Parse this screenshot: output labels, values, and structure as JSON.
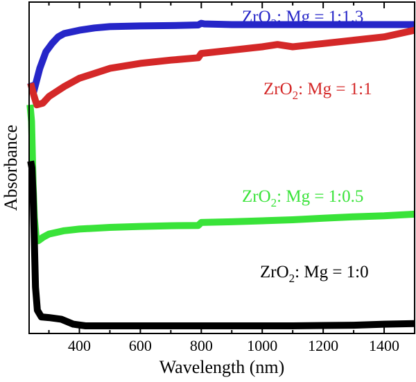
{
  "chart_data": {
    "type": "line",
    "title": "",
    "xlabel": "Wavelength (nm)",
    "ylabel": "Absorbance",
    "xlim": [
      235,
      1500
    ],
    "ylim": [
      0,
      1
    ],
    "x_ticks": [
      400,
      600,
      800,
      1000,
      1200,
      1400
    ],
    "y_ticks_shown": false,
    "grid": false,
    "legend": "inline labels",
    "series": [
      {
        "name": "ZrO2: Mg = 1:1.3",
        "name_parts": {
          "base": "ZrO",
          "sub": "2",
          "rest": ": Mg = 1:1.3"
        },
        "color": "#2626c8",
        "points": [
          [
            240,
            0.757
          ],
          [
            250,
            0.73
          ],
          [
            270,
            0.8
          ],
          [
            290,
            0.85
          ],
          [
            310,
            0.875
          ],
          [
            330,
            0.895
          ],
          [
            350,
            0.905
          ],
          [
            400,
            0.915
          ],
          [
            450,
            0.922
          ],
          [
            500,
            0.926
          ],
          [
            600,
            0.928
          ],
          [
            700,
            0.929
          ],
          [
            790,
            0.931
          ],
          [
            800,
            0.936
          ],
          [
            810,
            0.934
          ],
          [
            900,
            0.932
          ],
          [
            1000,
            0.932
          ],
          [
            1100,
            0.932
          ],
          [
            1200,
            0.932
          ],
          [
            1300,
            0.932
          ],
          [
            1400,
            0.932
          ],
          [
            1500,
            0.932
          ]
        ]
      },
      {
        "name": "ZrO2: Mg = 1:1",
        "name_parts": {
          "base": "ZrO",
          "sub": "2",
          "rest": ": Mg = 1:1"
        },
        "color": "#d42828",
        "points": [
          [
            240,
            0.755
          ],
          [
            250,
            0.72
          ],
          [
            260,
            0.69
          ],
          [
            280,
            0.695
          ],
          [
            300,
            0.715
          ],
          [
            350,
            0.745
          ],
          [
            400,
            0.77
          ],
          [
            500,
            0.8
          ],
          [
            600,
            0.815
          ],
          [
            700,
            0.825
          ],
          [
            790,
            0.832
          ],
          [
            800,
            0.845
          ],
          [
            900,
            0.855
          ],
          [
            1000,
            0.865
          ],
          [
            1050,
            0.872
          ],
          [
            1100,
            0.865
          ],
          [
            1200,
            0.875
          ],
          [
            1300,
            0.885
          ],
          [
            1400,
            0.895
          ],
          [
            1500,
            0.915
          ]
        ]
      },
      {
        "name": "ZrO2: Mg = 1:0.5",
        "name_parts": {
          "base": "ZrO",
          "sub": "2",
          "rest": ": Mg = 1:0.5"
        },
        "color": "#39e339",
        "points": [
          [
            238,
            0.69
          ],
          [
            243,
            0.64
          ],
          [
            248,
            0.45
          ],
          [
            252,
            0.35
          ],
          [
            258,
            0.29
          ],
          [
            265,
            0.28
          ],
          [
            280,
            0.29
          ],
          [
            300,
            0.3
          ],
          [
            350,
            0.31
          ],
          [
            400,
            0.315
          ],
          [
            500,
            0.32
          ],
          [
            600,
            0.323
          ],
          [
            700,
            0.325
          ],
          [
            790,
            0.326
          ],
          [
            800,
            0.335
          ],
          [
            900,
            0.337
          ],
          [
            1000,
            0.34
          ],
          [
            1100,
            0.343
          ],
          [
            1200,
            0.348
          ],
          [
            1300,
            0.352
          ],
          [
            1400,
            0.355
          ],
          [
            1500,
            0.36
          ]
        ]
      },
      {
        "name": "ZrO2: Mg = 1:0",
        "name_parts": {
          "base": "ZrO",
          "sub": "2",
          "rest": ": Mg = 1:0"
        },
        "color": "#000000",
        "points": [
          [
            240,
            0.52
          ],
          [
            244,
            0.5
          ],
          [
            248,
            0.42
          ],
          [
            252,
            0.28
          ],
          [
            256,
            0.14
          ],
          [
            262,
            0.07
          ],
          [
            275,
            0.05
          ],
          [
            300,
            0.048
          ],
          [
            340,
            0.043
          ],
          [
            380,
            0.028
          ],
          [
            420,
            0.023
          ],
          [
            500,
            0.023
          ],
          [
            600,
            0.023
          ],
          [
            700,
            0.023
          ],
          [
            800,
            0.023
          ],
          [
            900,
            0.023
          ],
          [
            1000,
            0.023
          ],
          [
            1100,
            0.023
          ],
          [
            1200,
            0.024
          ],
          [
            1300,
            0.025
          ],
          [
            1400,
            0.028
          ],
          [
            1500,
            0.03
          ]
        ]
      }
    ]
  }
}
